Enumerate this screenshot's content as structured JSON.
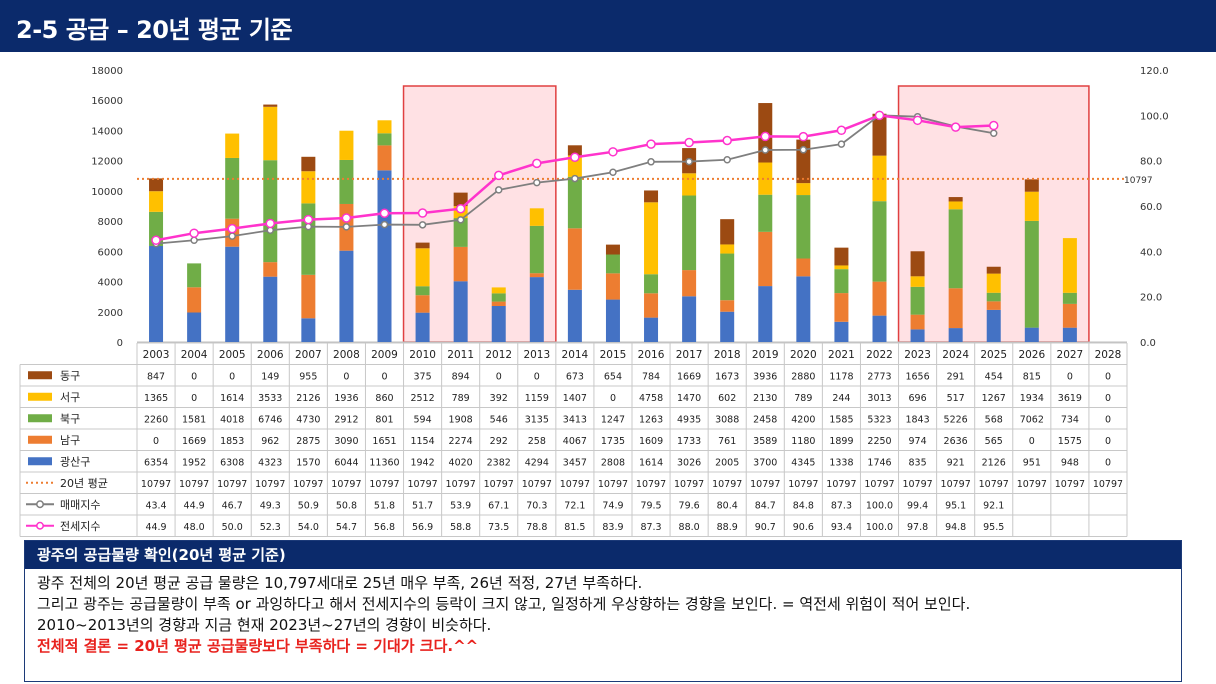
{
  "header": {
    "title": "2-5 공급 – 20년 평균 기준"
  },
  "chart_data": {
    "type": "bar",
    "stacked": true,
    "categories": [
      "2003",
      "2004",
      "2005",
      "2006",
      "2007",
      "2008",
      "2009",
      "2010",
      "2011",
      "2012",
      "2013",
      "2014",
      "2015",
      "2016",
      "2017",
      "2018",
      "2019",
      "2020",
      "2021",
      "2022",
      "2023",
      "2024",
      "2025",
      "2026",
      "2027",
      "2028"
    ],
    "y_left": {
      "ylim": [
        0,
        18000
      ],
      "ticks": [
        "0",
        "2000",
        "4000",
        "6000",
        "8000",
        "10000",
        "12000",
        "14000",
        "16000",
        "18000"
      ]
    },
    "y_right": {
      "ylim": [
        0,
        120
      ],
      "ticks": [
        "0.0",
        "20.0",
        "40.0",
        "60.0",
        "80.0",
        "100.0",
        "120.0"
      ]
    },
    "avg_label": "10797",
    "series": [
      {
        "name": "동구",
        "color": "#9c4a12",
        "display": [
          "847",
          "0",
          "0",
          "149",
          "955",
          "0",
          "0",
          "375",
          "894",
          "0",
          "0",
          "673",
          "654",
          "784",
          "1669",
          "1673",
          "3936",
          "2880",
          "1178",
          "2773",
          "1656",
          "291",
          "454",
          "815",
          "0",
          "0"
        ],
        "values": [
          847,
          0,
          0,
          149,
          955,
          0,
          0,
          375,
          894,
          0,
          0,
          673,
          654,
          784,
          1669,
          1673,
          3936,
          2880,
          1178,
          2773,
          1656,
          291,
          454,
          815,
          0,
          0
        ]
      },
      {
        "name": "서구",
        "color": "#ffc000",
        "display": [
          "1365",
          "0",
          "1614",
          "3533",
          "2126",
          "1936",
          "860",
          "2512",
          "789",
          "392",
          "1159",
          "1407",
          "0",
          "4758",
          "1470",
          "602",
          "2130",
          "789",
          "244",
          "3013",
          "696",
          "517",
          "1267",
          "1934",
          "3619",
          "0"
        ],
        "values": [
          1365,
          0,
          1614,
          3533,
          2126,
          1936,
          860,
          2512,
          789,
          392,
          1159,
          1407,
          0,
          4758,
          1470,
          602,
          2130,
          789,
          244,
          3013,
          696,
          517,
          1267,
          1934,
          3619,
          0
        ]
      },
      {
        "name": "북구",
        "color": "#70ad47",
        "display": [
          "2260",
          "1581",
          "4018",
          "6746",
          "4730",
          "2912",
          "801",
          "594",
          "1908",
          "546",
          "3135",
          "3413",
          "1247",
          "1263",
          "4935",
          "3088",
          "2458",
          "4200",
          "1585",
          "5323",
          "1843",
          "5226",
          "568",
          "7062",
          "734",
          "0"
        ],
        "values": [
          2260,
          1581,
          4018,
          6746,
          4730,
          2912,
          801,
          594,
          1908,
          546,
          3135,
          3413,
          1247,
          1263,
          4935,
          3088,
          2458,
          4200,
          1585,
          5323,
          1843,
          5226,
          568,
          7062,
          734,
          0
        ]
      },
      {
        "name": "남구",
        "color": "#ed7d31",
        "display": [
          "0",
          "1669",
          "1853",
          "962",
          "2875",
          "3090",
          "1651",
          "1154",
          "2274",
          "292",
          "258",
          "4067",
          "1735",
          "1609",
          "1733",
          "761",
          "3589",
          "1180",
          "1899",
          "2250",
          "974",
          "2636",
          "565",
          "0",
          "1575",
          "0"
        ],
        "values": [
          0,
          1669,
          1853,
          962,
          2875,
          3090,
          1651,
          1154,
          2274,
          292,
          258,
          4067,
          1735,
          1609,
          1733,
          761,
          3589,
          1180,
          1899,
          2250,
          974,
          2636,
          565,
          0,
          1575,
          0
        ]
      },
      {
        "name": "광산구",
        "color": "#4472c4",
        "display": [
          "6354",
          "1952",
          "6308",
          "4323",
          "1570",
          "6044",
          "11360",
          "1942",
          "4020",
          "2382",
          "4294",
          "3457",
          "2808",
          "1614",
          "3026",
          "2005",
          "3700",
          "4345",
          "1338",
          "1746",
          "835",
          "921",
          "2126",
          "951",
          "948",
          "0"
        ],
        "values": [
          6354,
          1952,
          6308,
          4323,
          1570,
          6044,
          11360,
          1942,
          4020,
          2382,
          4294,
          3457,
          2808,
          1614,
          3026,
          2005,
          3700,
          4345,
          1338,
          1746,
          835,
          921,
          2126,
          951,
          948,
          0
        ]
      }
    ],
    "avg_series": {
      "name": "20년 평균",
      "color": "#ed7d31",
      "value": 10797,
      "display": [
        "10797",
        "10797",
        "10797",
        "10797",
        "10797",
        "10797",
        "10797",
        "10797",
        "10797",
        "10797",
        "10797",
        "10797",
        "10797",
        "10797",
        "10797",
        "10797",
        "10797",
        "10797",
        "10797",
        "10797",
        "10797",
        "10797",
        "10797",
        "10797",
        "10797",
        "10797"
      ]
    },
    "lines": [
      {
        "name": "매매지수",
        "color": "#7f7f7f",
        "axis": "right",
        "display": [
          "43.4",
          "44.9",
          "46.7",
          "49.3",
          "50.9",
          "50.8",
          "51.8",
          "51.7",
          "53.9",
          "67.1",
          "70.3",
          "72.1",
          "74.9",
          "79.5",
          "79.6",
          "80.4",
          "84.7",
          "84.8",
          "87.3",
          "100.0",
          "99.4",
          "95.1",
          "92.1",
          "",
          "",
          ""
        ],
        "values": [
          43.4,
          44.9,
          46.7,
          49.3,
          50.9,
          50.8,
          51.8,
          51.7,
          53.9,
          67.1,
          70.3,
          72.1,
          74.9,
          79.5,
          79.6,
          80.4,
          84.7,
          84.8,
          87.3,
          100.0,
          99.4,
          95.1,
          92.1,
          null,
          null,
          null
        ]
      },
      {
        "name": "전세지수",
        "color": "#ff33cc",
        "axis": "right",
        "display": [
          "44.9",
          "48.0",
          "50.0",
          "52.3",
          "54.0",
          "54.7",
          "56.8",
          "56.9",
          "58.8",
          "73.5",
          "78.8",
          "81.5",
          "83.9",
          "87.3",
          "88.0",
          "88.9",
          "90.7",
          "90.6",
          "93.4",
          "100.0",
          "97.8",
          "94.8",
          "95.5",
          "",
          "",
          ""
        ],
        "values": [
          44.9,
          48.0,
          50.0,
          52.3,
          54.0,
          54.7,
          56.8,
          56.9,
          58.8,
          73.5,
          78.8,
          81.5,
          83.9,
          87.3,
          88.0,
          88.9,
          90.7,
          90.6,
          93.4,
          100.0,
          97.8,
          94.8,
          95.5,
          null,
          null,
          null
        ]
      }
    ],
    "highlight_ranges": [
      [
        "2010",
        "2013"
      ],
      [
        "2023",
        "2027"
      ]
    ]
  },
  "panel": {
    "title": "광주의 공급물량 확인(20년 평균 기준)",
    "lines": [
      "광주 전체의 20년 평균 공급 물량은 10,797세대로  25년 매우 부족, 26년 적정, 27년 부족하다.",
      "그리고 광주는 공급물량이 부족 or 과잉하다고 해서 전세지수의 등락이 크지 않고, 일정하게 우상향하는 경향을 보인다. = 역전세 위험이 적어 보인다.",
      "2010~2013년의 경향과 지금 현재 2023년~27년의 경향이 비슷하다."
    ],
    "conclusion": "전체적 결론 = 20년 평균 공급물량보다 부족하다 = 기대가 크다.^^"
  }
}
